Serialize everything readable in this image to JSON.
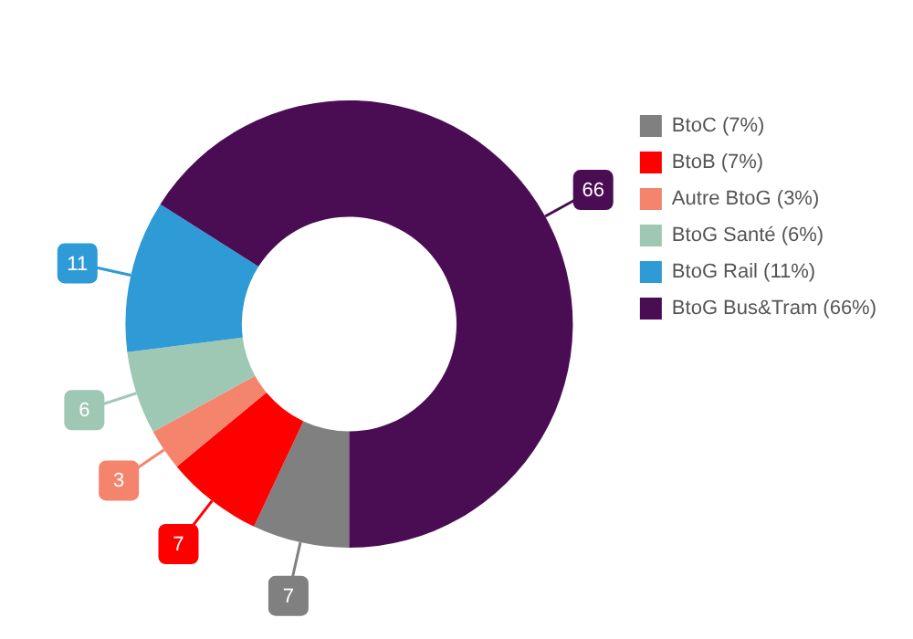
{
  "chart_data": {
    "type": "donut",
    "categories": [
      "BtoC (7%)",
      "BtoB (7%)",
      "Autre BtoG (3%)",
      "BtoG Santé (6%)",
      "BtoG Rail (11%)",
      "BtoG Bus&Tram (66%)"
    ],
    "values": [
      7,
      7,
      3,
      6,
      11,
      66
    ],
    "colors": [
      "#808080",
      "#ff0000",
      "#f4846b",
      "#9fc8b4",
      "#2e9ad6",
      "#4a0d54"
    ],
    "data_labels": true,
    "legend": "top right"
  }
}
